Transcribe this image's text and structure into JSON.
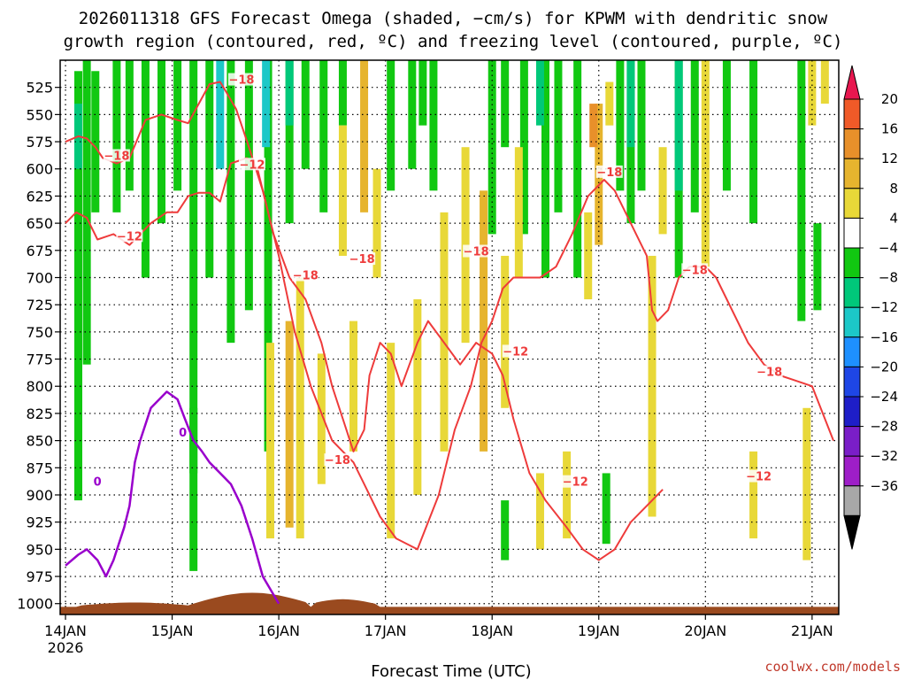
{
  "chart_data": {
    "type": "heatmap",
    "title_line1": "2026011318 GFS Forecast Omega (shaded, −cm/s) for KPWM with dendritic snow",
    "title_line2": "growth region (contoured, red, ºC) and freezing level (contoured, purple, ºC)",
    "xlabel": "Forecast Time (UTC)",
    "source": "coolwx.com/models",
    "x_axis": {
      "unit": "days since 14JAN 00Z",
      "range": [
        -0.05,
        7.25
      ],
      "ticks": [
        {
          "day": 0,
          "label": "14JAN",
          "sublabel": "2026"
        },
        {
          "day": 1,
          "label": "15JAN",
          "sublabel": ""
        },
        {
          "day": 2,
          "label": "16JAN",
          "sublabel": ""
        },
        {
          "day": 3,
          "label": "17JAN",
          "sublabel": ""
        },
        {
          "day": 4,
          "label": "18JAN",
          "sublabel": ""
        },
        {
          "day": 5,
          "label": "19JAN",
          "sublabel": ""
        },
        {
          "day": 6,
          "label": "20JAN",
          "sublabel": ""
        },
        {
          "day": 7,
          "label": "21JAN",
          "sublabel": ""
        }
      ]
    },
    "y_axis": {
      "unit": "hPa",
      "range": [
        1010,
        500
      ],
      "ticks": [
        "525",
        "550",
        "575",
        "600",
        "625",
        "650",
        "675",
        "700",
        "725",
        "750",
        "775",
        "800",
        "825",
        "850",
        "875",
        "900",
        "925",
        "950",
        "975",
        "1000"
      ]
    },
    "colorbar": {
      "labels": [
        "20",
        "16",
        "12",
        "8",
        "4",
        "−4",
        "−8",
        "−12",
        "−16",
        "−20",
        "−24",
        "−28",
        "−32",
        "−36"
      ],
      "colors": [
        "#e8174f",
        "#f05a28",
        "#e8902a",
        "#e6b42e",
        "#e8d838",
        "#ffffff",
        "#11c811",
        "#00c87a",
        "#1cc8c8",
        "#1e90ff",
        "#1e46e6",
        "#1e1ec8",
        "#7a1ec8",
        "#9e1ec8",
        "#a8a8a8",
        "#000000"
      ]
    },
    "omega_bands": [
      {
        "day": 0.12,
        "top": 510,
        "bottom": 905,
        "color": "#11c811"
      },
      {
        "day": 0.2,
        "top": 500,
        "bottom": 780,
        "color": "#11c811"
      },
      {
        "day": 0.28,
        "top": 510,
        "bottom": 640,
        "color": "#11c811"
      },
      {
        "day": 0.48,
        "top": 500,
        "bottom": 640,
        "color": "#11c811"
      },
      {
        "day": 0.6,
        "top": 500,
        "bottom": 620,
        "color": "#11c811"
      },
      {
        "day": 0.75,
        "top": 500,
        "bottom": 700,
        "color": "#11c811"
      },
      {
        "day": 0.9,
        "top": 500,
        "bottom": 650,
        "color": "#11c811"
      },
      {
        "day": 1.05,
        "top": 500,
        "bottom": 620,
        "color": "#11c811"
      },
      {
        "day": 1.2,
        "top": 500,
        "bottom": 970,
        "color": "#11c811"
      },
      {
        "day": 1.35,
        "top": 500,
        "bottom": 700,
        "color": "#11c811"
      },
      {
        "day": 1.55,
        "top": 500,
        "bottom": 760,
        "color": "#11c811"
      },
      {
        "day": 1.72,
        "top": 500,
        "bottom": 730,
        "color": "#11c811"
      },
      {
        "day": 1.9,
        "top": 500,
        "bottom": 860,
        "color": "#11c811"
      },
      {
        "day": 2.1,
        "top": 500,
        "bottom": 650,
        "color": "#11c811"
      },
      {
        "day": 2.25,
        "top": 500,
        "bottom": 600,
        "color": "#11c811"
      },
      {
        "day": 2.42,
        "top": 500,
        "bottom": 640,
        "color": "#11c811"
      },
      {
        "day": 2.6,
        "top": 500,
        "bottom": 560,
        "color": "#11c811"
      },
      {
        "day": 3.05,
        "top": 500,
        "bottom": 620,
        "color": "#11c811"
      },
      {
        "day": 3.25,
        "top": 500,
        "bottom": 600,
        "color": "#11c811"
      },
      {
        "day": 3.35,
        "top": 500,
        "bottom": 560,
        "color": "#11c811"
      },
      {
        "day": 3.45,
        "top": 500,
        "bottom": 620,
        "color": "#11c811"
      },
      {
        "day": 4.0,
        "top": 500,
        "bottom": 660,
        "color": "#11c811"
      },
      {
        "day": 4.12,
        "top": 500,
        "bottom": 580,
        "color": "#11c811"
      },
      {
        "day": 4.3,
        "top": 500,
        "bottom": 660,
        "color": "#11c811"
      },
      {
        "day": 4.5,
        "top": 500,
        "bottom": 700,
        "color": "#11c811"
      },
      {
        "day": 4.62,
        "top": 500,
        "bottom": 640,
        "color": "#11c811"
      },
      {
        "day": 4.8,
        "top": 500,
        "bottom": 700,
        "color": "#11c811"
      },
      {
        "day": 5.2,
        "top": 500,
        "bottom": 620,
        "color": "#11c811"
      },
      {
        "day": 5.3,
        "top": 500,
        "bottom": 650,
        "color": "#11c811"
      },
      {
        "day": 5.4,
        "top": 500,
        "bottom": 620,
        "color": "#11c811"
      },
      {
        "day": 5.75,
        "top": 500,
        "bottom": 700,
        "color": "#11c811"
      },
      {
        "day": 5.9,
        "top": 500,
        "bottom": 640,
        "color": "#11c811"
      },
      {
        "day": 6.2,
        "top": 500,
        "bottom": 620,
        "color": "#11c811"
      },
      {
        "day": 6.45,
        "top": 500,
        "bottom": 650,
        "color": "#11c811"
      },
      {
        "day": 6.9,
        "top": 500,
        "bottom": 740,
        "color": "#11c811"
      },
      {
        "day": 7.05,
        "top": 650,
        "bottom": 730,
        "color": "#11c811"
      },
      {
        "day": 4.12,
        "top": 905,
        "bottom": 960,
        "color": "#11c811"
      },
      {
        "day": 5.07,
        "top": 880,
        "bottom": 945,
        "color": "#11c811"
      },
      {
        "day": 1.2,
        "top": 820,
        "bottom": 880,
        "color": "#11c811"
      },
      {
        "day": 1.45,
        "top": 500,
        "bottom": 600,
        "color": "#1cc8c8"
      },
      {
        "day": 1.88,
        "top": 500,
        "bottom": 580,
        "color": "#1cc8c8"
      },
      {
        "day": 2.1,
        "top": 500,
        "bottom": 560,
        "color": "#00c87a"
      },
      {
        "day": 4.45,
        "top": 500,
        "bottom": 560,
        "color": "#00c87a"
      },
      {
        "day": 5.3,
        "top": 500,
        "bottom": 580,
        "color": "#00c87a"
      },
      {
        "day": 5.75,
        "top": 500,
        "bottom": 620,
        "color": "#00c87a"
      },
      {
        "day": 0.12,
        "top": 540,
        "bottom": 600,
        "color": "#00c87a"
      },
      {
        "day": 2.8,
        "top": 500,
        "bottom": 640,
        "color": "#e6b42e"
      },
      {
        "day": 2.92,
        "top": 600,
        "bottom": 700,
        "color": "#e8d838"
      },
      {
        "day": 2.6,
        "top": 560,
        "bottom": 680,
        "color": "#e8d838"
      },
      {
        "day": 1.92,
        "top": 760,
        "bottom": 940,
        "color": "#e8d838"
      },
      {
        "day": 2.1,
        "top": 740,
        "bottom": 930,
        "color": "#e6b42e"
      },
      {
        "day": 2.2,
        "top": 700,
        "bottom": 940,
        "color": "#e8d838"
      },
      {
        "day": 2.4,
        "top": 770,
        "bottom": 890,
        "color": "#e8d838"
      },
      {
        "day": 2.7,
        "top": 740,
        "bottom": 860,
        "color": "#e8d838"
      },
      {
        "day": 3.05,
        "top": 760,
        "bottom": 940,
        "color": "#e8d838"
      },
      {
        "day": 3.3,
        "top": 720,
        "bottom": 900,
        "color": "#e8d838"
      },
      {
        "day": 3.55,
        "top": 640,
        "bottom": 860,
        "color": "#e8d838"
      },
      {
        "day": 3.75,
        "top": 580,
        "bottom": 760,
        "color": "#e8d838"
      },
      {
        "day": 3.92,
        "top": 620,
        "bottom": 860,
        "color": "#e6b42e"
      },
      {
        "day": 4.12,
        "top": 680,
        "bottom": 820,
        "color": "#e8d838"
      },
      {
        "day": 4.25,
        "top": 580,
        "bottom": 700,
        "color": "#e8d838"
      },
      {
        "day": 4.7,
        "top": 860,
        "bottom": 940,
        "color": "#e8d838"
      },
      {
        "day": 4.45,
        "top": 880,
        "bottom": 950,
        "color": "#e8d838"
      },
      {
        "day": 4.9,
        "top": 640,
        "bottom": 720,
        "color": "#e8d838"
      },
      {
        "day": 5.0,
        "top": 540,
        "bottom": 670,
        "color": "#e6b42e"
      },
      {
        "day": 4.95,
        "top": 540,
        "bottom": 580,
        "color": "#e8902a"
      },
      {
        "day": 5.1,
        "top": 520,
        "bottom": 560,
        "color": "#e8d838"
      },
      {
        "day": 5.5,
        "top": 680,
        "bottom": 920,
        "color": "#e8d838"
      },
      {
        "day": 5.6,
        "top": 580,
        "bottom": 660,
        "color": "#e8d838"
      },
      {
        "day": 6.0,
        "top": 500,
        "bottom": 690,
        "color": "#e8d838"
      },
      {
        "day": 6.45,
        "top": 860,
        "bottom": 940,
        "color": "#e8d838"
      },
      {
        "day": 7.0,
        "top": 500,
        "bottom": 560,
        "color": "#e8d838"
      },
      {
        "day": 7.12,
        "top": 500,
        "bottom": 540,
        "color": "#e8d838"
      },
      {
        "day": 6.95,
        "top": 820,
        "bottom": 960,
        "color": "#e8d838"
      }
    ],
    "contours": [
      {
        "name": "snow-growth-upper",
        "color": "#ee3b3b",
        "points": [
          [
            0,
            575
          ],
          [
            0.12,
            570
          ],
          [
            0.2,
            572
          ],
          [
            0.28,
            580
          ],
          [
            0.35,
            590
          ],
          [
            0.48,
            595
          ],
          [
            0.6,
            590
          ],
          [
            0.75,
            555
          ],
          [
            0.9,
            550
          ],
          [
            1.05,
            555
          ],
          [
            1.15,
            558
          ],
          [
            1.25,
            540
          ],
          [
            1.35,
            522
          ],
          [
            1.45,
            520
          ],
          [
            1.5,
            528
          ],
          [
            1.6,
            545
          ],
          [
            1.72,
            580
          ],
          [
            1.85,
            620
          ],
          [
            1.95,
            660
          ],
          [
            2.1,
            700
          ],
          [
            2.25,
            720
          ],
          [
            2.4,
            760
          ],
          [
            2.5,
            800
          ],
          [
            2.6,
            830
          ],
          [
            2.7,
            860
          ],
          [
            2.8,
            840
          ],
          [
            2.85,
            790
          ],
          [
            2.95,
            760
          ],
          [
            3.05,
            770
          ],
          [
            3.15,
            800
          ],
          [
            3.3,
            760
          ],
          [
            3.4,
            740
          ],
          [
            3.55,
            760
          ],
          [
            3.7,
            780
          ],
          [
            3.85,
            760
          ],
          [
            4.0,
            770
          ],
          [
            4.1,
            790
          ],
          [
            4.2,
            830
          ],
          [
            4.35,
            880
          ],
          [
            4.5,
            905
          ],
          [
            4.7,
            930
          ],
          [
            4.85,
            950
          ],
          [
            5.0,
            960
          ],
          [
            5.15,
            950
          ],
          [
            5.3,
            925
          ],
          [
            5.45,
            910
          ],
          [
            5.6,
            895
          ]
        ]
      },
      {
        "name": "snow-growth-lower",
        "color": "#ee3b3b",
        "points": [
          [
            0,
            650
          ],
          [
            0.1,
            640
          ],
          [
            0.2,
            645
          ],
          [
            0.3,
            665
          ],
          [
            0.45,
            660
          ],
          [
            0.6,
            670
          ],
          [
            0.7,
            660
          ],
          [
            0.8,
            650
          ],
          [
            0.95,
            640
          ],
          [
            1.05,
            640
          ],
          [
            1.15,
            625
          ],
          [
            1.25,
            622
          ],
          [
            1.35,
            622
          ],
          [
            1.45,
            630
          ],
          [
            1.55,
            595
          ],
          [
            1.7,
            590
          ],
          [
            1.8,
            600
          ],
          [
            1.9,
            640
          ],
          [
            2.0,
            680
          ],
          [
            2.15,
            750
          ],
          [
            2.3,
            800
          ],
          [
            2.5,
            850
          ],
          [
            2.7,
            870
          ],
          [
            2.8,
            890
          ],
          [
            2.95,
            920
          ],
          [
            3.1,
            940
          ],
          [
            3.3,
            950
          ],
          [
            3.5,
            900
          ],
          [
            3.65,
            840
          ],
          [
            3.8,
            800
          ],
          [
            3.9,
            760
          ],
          [
            4.0,
            740
          ],
          [
            4.1,
            710
          ],
          [
            4.2,
            700
          ],
          [
            4.3,
            700
          ],
          [
            4.45,
            700
          ],
          [
            4.6,
            690
          ],
          [
            4.75,
            660
          ],
          [
            4.9,
            625
          ],
          [
            5.05,
            610
          ],
          [
            5.15,
            620
          ],
          [
            5.3,
            650
          ],
          [
            5.45,
            680
          ],
          [
            5.5,
            730
          ],
          [
            5.55,
            740
          ],
          [
            5.65,
            730
          ],
          [
            5.75,
            700
          ],
          [
            5.85,
            690
          ],
          [
            6.0,
            690
          ],
          [
            6.1,
            700
          ],
          [
            6.2,
            720
          ],
          [
            6.4,
            760
          ],
          [
            6.55,
            780
          ],
          [
            6.7,
            790
          ],
          [
            6.85,
            795
          ],
          [
            7.0,
            800
          ],
          [
            7.2,
            850
          ]
        ]
      },
      {
        "name": "freezing-level",
        "color": "#9900cc",
        "points": [
          [
            0,
            965
          ],
          [
            0.12,
            955
          ],
          [
            0.2,
            950
          ],
          [
            0.3,
            960
          ],
          [
            0.38,
            975
          ],
          [
            0.45,
            960
          ],
          [
            0.55,
            930
          ],
          [
            0.6,
            910
          ],
          [
            0.65,
            870
          ],
          [
            0.7,
            850
          ],
          [
            0.8,
            820
          ],
          [
            0.9,
            810
          ],
          [
            0.95,
            805
          ],
          [
            1.05,
            812
          ],
          [
            1.12,
            830
          ],
          [
            1.2,
            850
          ],
          [
            1.28,
            860
          ],
          [
            1.35,
            870
          ],
          [
            1.45,
            880
          ],
          [
            1.55,
            890
          ],
          [
            1.65,
            910
          ],
          [
            1.75,
            940
          ],
          [
            1.85,
            975
          ],
          [
            2.0,
            1000
          ]
        ]
      }
    ],
    "contour_labels": [
      {
        "text": "−18",
        "day": 0.48,
        "p": 590
      },
      {
        "text": "−12",
        "day": 0.6,
        "p": 664
      },
      {
        "text": "−18",
        "day": 1.65,
        "p": 520
      },
      {
        "text": "−12",
        "day": 1.75,
        "p": 598
      },
      {
        "text": "−18",
        "day": 2.25,
        "p": 700
      },
      {
        "text": "−18",
        "day": 2.78,
        "p": 685
      },
      {
        "text": "−18",
        "day": 2.55,
        "p": 870
      },
      {
        "text": "−18",
        "day": 3.85,
        "p": 678
      },
      {
        "text": "−12",
        "day": 4.22,
        "p": 770
      },
      {
        "text": "−12",
        "day": 4.78,
        "p": 890
      },
      {
        "text": "−18",
        "day": 5.1,
        "p": 605
      },
      {
        "text": "−18",
        "day": 5.9,
        "p": 695
      },
      {
        "text": "−18",
        "day": 6.6,
        "p": 789
      },
      {
        "text": "−12",
        "day": 6.5,
        "p": 885
      }
    ],
    "purple_labels": [
      {
        "text": "0",
        "day": 1.1,
        "p": 843
      },
      {
        "text": "0",
        "day": 0.3,
        "p": 888
      }
    ]
  }
}
